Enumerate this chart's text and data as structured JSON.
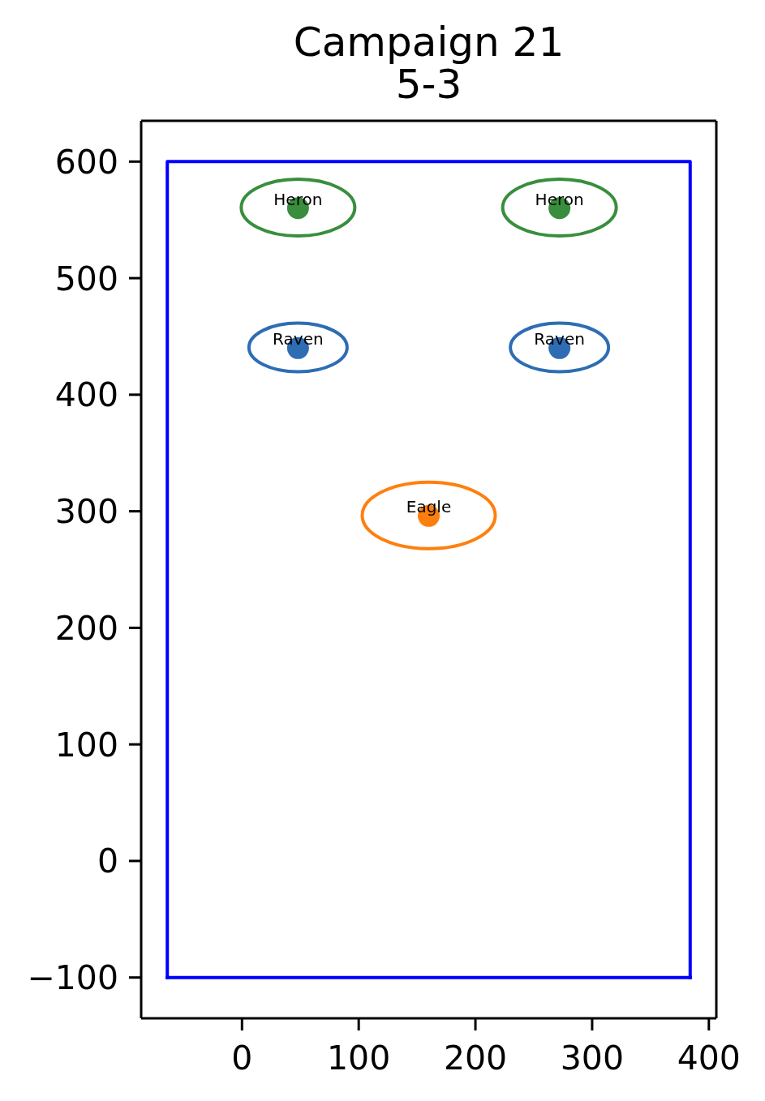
{
  "chart_data": {
    "type": "scatter",
    "title": "Campaign 21",
    "subtitle": "5-3",
    "series": [
      {
        "name": "Heron",
        "color": "#388e3c",
        "x": [
          48,
          272
        ],
        "values": [
          560,
          560
        ]
      },
      {
        "name": "Raven",
        "color": "#2e6db4",
        "x": [
          48,
          272
        ],
        "values": [
          440,
          440
        ]
      },
      {
        "name": "Eagle",
        "color": "#ff7f0e",
        "x": [
          160
        ],
        "values": [
          296
        ]
      },
      {
        "type": "line",
        "color": "#0000ff",
        "x": [
          -64,
          -64,
          384,
          384
        ],
        "values": [
          -100,
          600,
          600,
          -100
        ],
        "marker": "none"
      },
      {
        "type": "line",
        "color": "#0000ff",
        "x": [
          -64,
          384
        ],
        "values": [
          -100,
          -100
        ],
        "marker": "none"
      }
    ],
    "xlim": [
      -86.4,
      406.4
    ],
    "ylim": [
      -135,
      635
    ],
    "xticks": [
      0,
      100,
      200,
      300,
      400
    ],
    "yticks": [
      {
        "value": -100,
        "label": "−100"
      },
      0,
      100,
      200,
      300,
      400,
      500,
      600
    ],
    "marker": "circle"
  }
}
